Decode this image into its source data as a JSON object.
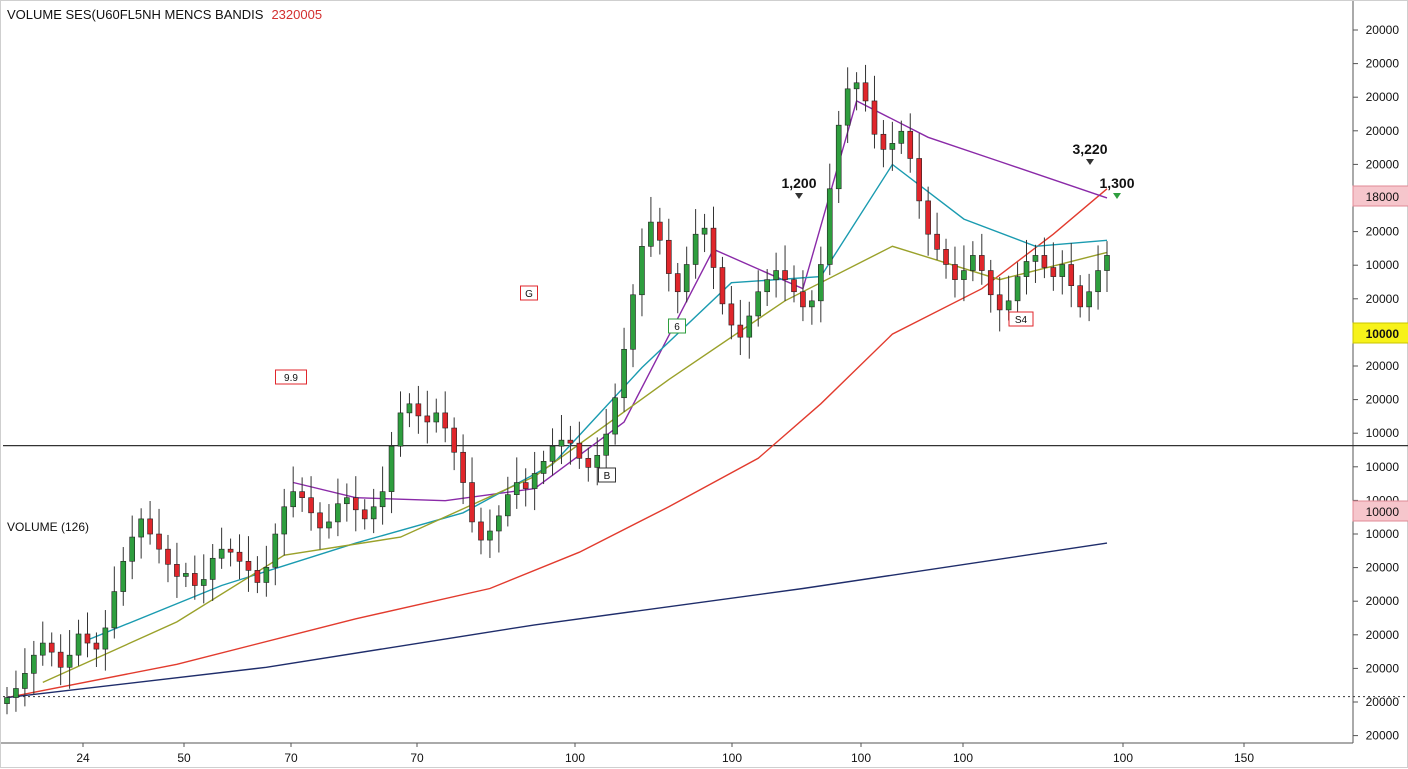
{
  "header": {
    "title": "VOLUME SES(U60FL5NH MENCS BANDIS",
    "value": "2320005"
  },
  "volume_label": "VOLUME (126)",
  "colors": {
    "up": "#2e9e3e",
    "down": "#e0262b",
    "ma_red": "#e23b2e",
    "ma_navy": "#1f2d6b",
    "ma_purple": "#8a2aa8",
    "ma_teal": "#1a9bb0",
    "ma_olive": "#9aa12a",
    "hline": "#333333",
    "badge_yellow": "#f7f21a",
    "badge_pink": "#f6c6cc"
  },
  "chart_data": {
    "type": "candlestick",
    "title": "VOLUME SES(U60FL5NH MENCS BANDIS",
    "y_axis_labels": [
      "20000",
      "20000",
      "20000",
      "20000",
      "20000",
      "18000",
      "20000",
      "10000",
      "20000",
      "10000",
      "20000",
      "20000",
      "10000",
      "10000",
      "10000",
      "10000",
      "20000",
      "20000",
      "20000",
      "20000",
      "20000",
      "20000"
    ],
    "x_axis_labels": [
      "24",
      "50",
      "70",
      "70",
      "100",
      "100",
      "100",
      "100",
      "100",
      "150"
    ],
    "annotations": [
      {
        "text": "1,200",
        "kind": "label"
      },
      {
        "text": "3,220",
        "kind": "label"
      },
      {
        "text": "1,300",
        "kind": "label"
      },
      {
        "text": "G",
        "kind": "badge"
      },
      {
        "text": "6",
        "kind": "badge"
      },
      {
        "text": "9.9",
        "kind": "badge"
      },
      {
        "text": "B",
        "kind": "badge"
      },
      {
        "text": "S4",
        "kind": "badge"
      }
    ],
    "badges": [
      {
        "text": "18000",
        "style": "pink"
      },
      {
        "text": "10000",
        "style": "yellow"
      },
      {
        "text": "10000",
        "style": "pink"
      }
    ],
    "close_trend": [
      [
        1,
        1.5
      ],
      [
        2,
        1.8
      ],
      [
        3,
        2.3
      ],
      [
        4,
        2.9
      ],
      [
        5,
        3.3
      ],
      [
        6,
        3.0
      ],
      [
        7,
        2.5
      ],
      [
        8,
        2.9
      ],
      [
        9,
        3.6
      ],
      [
        10,
        3.3
      ],
      [
        11,
        3.1
      ],
      [
        12,
        3.8
      ],
      [
        13,
        5.0
      ],
      [
        14,
        6.0
      ],
      [
        15,
        6.8
      ],
      [
        16,
        7.4
      ],
      [
        17,
        6.9
      ],
      [
        18,
        6.4
      ],
      [
        19,
        5.9
      ],
      [
        20,
        5.5
      ],
      [
        21,
        5.6
      ],
      [
        22,
        5.2
      ],
      [
        23,
        5.4
      ],
      [
        24,
        6.1
      ],
      [
        25,
        6.4
      ],
      [
        26,
        6.3
      ],
      [
        27,
        6.0
      ],
      [
        28,
        5.7
      ],
      [
        29,
        5.3
      ],
      [
        30,
        5.8
      ],
      [
        31,
        6.9
      ],
      [
        32,
        7.8
      ],
      [
        33,
        8.3
      ],
      [
        34,
        8.1
      ],
      [
        35,
        7.6
      ],
      [
        36,
        7.1
      ],
      [
        37,
        7.3
      ],
      [
        38,
        7.9
      ],
      [
        39,
        8.1
      ],
      [
        40,
        7.7
      ],
      [
        41,
        7.4
      ],
      [
        42,
        7.8
      ],
      [
        43,
        8.3
      ],
      [
        44,
        9.8
      ],
      [
        45,
        10.9
      ],
      [
        46,
        11.2
      ],
      [
        47,
        10.8
      ],
      [
        48,
        10.6
      ],
      [
        49,
        10.9
      ],
      [
        50,
        10.4
      ],
      [
        51,
        9.6
      ],
      [
        52,
        8.6
      ],
      [
        53,
        7.3
      ],
      [
        54,
        6.7
      ],
      [
        55,
        7.0
      ],
      [
        56,
        7.5
      ],
      [
        57,
        8.2
      ],
      [
        58,
        8.6
      ],
      [
        59,
        8.4
      ],
      [
        60,
        8.9
      ],
      [
        61,
        9.3
      ],
      [
        62,
        9.8
      ],
      [
        63,
        10.0
      ],
      [
        64,
        9.9
      ],
      [
        65,
        9.4
      ],
      [
        66,
        9.1
      ],
      [
        67,
        9.5
      ],
      [
        68,
        10.2
      ],
      [
        69,
        11.4
      ],
      [
        70,
        13.0
      ],
      [
        71,
        14.8
      ],
      [
        72,
        16.4
      ],
      [
        73,
        17.2
      ],
      [
        74,
        16.6
      ],
      [
        75,
        15.5
      ],
      [
        76,
        14.9
      ],
      [
        77,
        15.8
      ],
      [
        78,
        16.8
      ],
      [
        79,
        17.0
      ],
      [
        80,
        15.7
      ],
      [
        81,
        14.5
      ],
      [
        82,
        13.8
      ],
      [
        83,
        13.4
      ],
      [
        84,
        14.1
      ],
      [
        85,
        14.9
      ],
      [
        86,
        15.3
      ],
      [
        87,
        15.6
      ],
      [
        88,
        15.3
      ],
      [
        89,
        14.9
      ],
      [
        90,
        14.4
      ],
      [
        91,
        14.6
      ],
      [
        92,
        15.8
      ],
      [
        93,
        18.3
      ],
      [
        94,
        20.4
      ],
      [
        95,
        21.6
      ],
      [
        96,
        21.8
      ],
      [
        97,
        21.2
      ],
      [
        98,
        20.1
      ],
      [
        99,
        19.6
      ],
      [
        100,
        19.8
      ],
      [
        101,
        20.2
      ],
      [
        102,
        19.3
      ],
      [
        103,
        17.9
      ],
      [
        104,
        16.8
      ],
      [
        105,
        16.3
      ],
      [
        106,
        15.8
      ],
      [
        107,
        15.3
      ],
      [
        108,
        15.6
      ],
      [
        109,
        16.1
      ],
      [
        110,
        15.6
      ],
      [
        111,
        14.8
      ],
      [
        112,
        14.3
      ],
      [
        113,
        14.6
      ],
      [
        114,
        15.4
      ],
      [
        115,
        15.9
      ],
      [
        116,
        16.1
      ],
      [
        117,
        15.7
      ],
      [
        118,
        15.4
      ],
      [
        119,
        15.8
      ],
      [
        120,
        15.1
      ],
      [
        121,
        14.4
      ],
      [
        122,
        14.9
      ],
      [
        123,
        15.6
      ],
      [
        124,
        16.1
      ]
    ],
    "moving_averages": [
      {
        "color": "red",
        "points": [
          [
            1,
            1.5
          ],
          [
            20,
            2.6
          ],
          [
            40,
            4.1
          ],
          [
            55,
            5.1
          ],
          [
            65,
            6.3
          ],
          [
            75,
            7.8
          ],
          [
            85,
            9.4
          ],
          [
            92,
            11.2
          ],
          [
            100,
            13.5
          ],
          [
            110,
            15.0
          ],
          [
            118,
            16.8
          ],
          [
            124,
            18.3
          ]
        ]
      },
      {
        "color": "navy",
        "points": [
          [
            1,
            1.5
          ],
          [
            30,
            2.5
          ],
          [
            60,
            3.9
          ],
          [
            90,
            5.1
          ],
          [
            124,
            6.6
          ]
        ]
      },
      {
        "color": "purple",
        "points": [
          [
            33,
            8.6
          ],
          [
            40,
            8.1
          ],
          [
            50,
            8.0
          ],
          [
            60,
            8.4
          ],
          [
            70,
            10.6
          ],
          [
            80,
            16.3
          ],
          [
            90,
            15.0
          ],
          [
            96,
            21.2
          ],
          [
            104,
            20.0
          ],
          [
            112,
            19.2
          ],
          [
            124,
            18.0
          ]
        ]
      },
      {
        "color": "teal",
        "points": [
          [
            10,
            3.4
          ],
          [
            25,
            5.2
          ],
          [
            40,
            6.6
          ],
          [
            52,
            7.6
          ],
          [
            62,
            9.2
          ],
          [
            72,
            12.4
          ],
          [
            82,
            15.2
          ],
          [
            92,
            15.4
          ],
          [
            100,
            19.1
          ],
          [
            108,
            17.3
          ],
          [
            116,
            16.4
          ],
          [
            124,
            16.6
          ]
        ]
      },
      {
        "color": "olive",
        "points": [
          [
            5,
            2.0
          ],
          [
            20,
            4.0
          ],
          [
            32,
            6.2
          ],
          [
            45,
            6.8
          ],
          [
            60,
            8.8
          ],
          [
            75,
            12.0
          ],
          [
            88,
            14.6
          ],
          [
            100,
            16.4
          ],
          [
            112,
            15.3
          ],
          [
            124,
            16.2
          ]
        ]
      }
    ],
    "horizontal_lines": [
      {
        "y": 9.82,
        "style": "solid"
      },
      {
        "y": 1.53,
        "style": "dotted"
      }
    ],
    "ylim": [
      0,
      24.5
    ],
    "xlim": [
      0,
      150
    ],
    "grid": false
  }
}
